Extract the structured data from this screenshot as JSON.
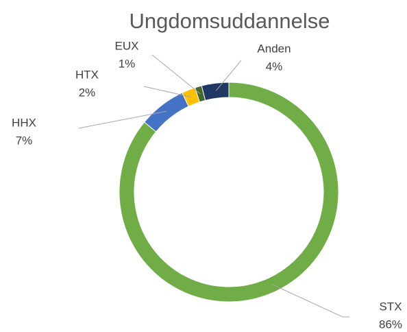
{
  "chart_data": {
    "type": "donut",
    "title": "Ungdomsuddannelse",
    "categories": [
      "STX",
      "HHX",
      "HTX",
      "EUX",
      "Anden"
    ],
    "values": [
      86,
      7,
      2,
      1,
      4
    ],
    "value_labels": [
      "86%",
      "7%",
      "2%",
      "1%",
      "4%"
    ],
    "colors": [
      "#70ad47",
      "#4472c4",
      "#ffc000",
      "#43682b",
      "#203864"
    ]
  }
}
